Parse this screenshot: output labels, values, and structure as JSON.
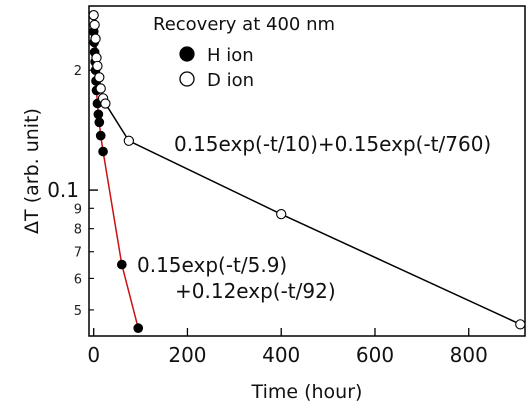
{
  "chart_data": {
    "type": "scatter",
    "title": "",
    "xlabel": "Time (hour)",
    "ylabel": "ΔT (arb. unit)",
    "x_scale": "linear",
    "y_scale": "log",
    "xlim": [
      -10,
      920
    ],
    "ylim": [
      0.043,
      0.29
    ],
    "x_ticks": [
      0,
      200,
      400,
      600,
      800
    ],
    "x_tick_labels": [
      "0",
      "200",
      "400",
      "600",
      "800"
    ],
    "y_major_ticks": [
      0.1
    ],
    "y_major_tick_labels": [
      "0.1"
    ],
    "y_minor_ticks": [
      0.05,
      0.06,
      0.07,
      0.08,
      0.09,
      0.2
    ],
    "y_minor_tick_labels": [
      "5",
      "6",
      "7",
      "8",
      "9",
      "2"
    ],
    "grid": false,
    "legend": {
      "title": "Recovery at 400 nm",
      "position": "top-center"
    },
    "series": [
      {
        "name": "H ion",
        "marker": "filled-circle",
        "color": "#000000",
        "fit_label_lines": [
          "0.15exp(-t/5.9)",
          "+0.12exp(-t/92)"
        ],
        "fit_color": "#cc1111",
        "points": [
          {
            "x": 0,
            "y": 0.25
          },
          {
            "x": 1,
            "y": 0.235
          },
          {
            "x": 2,
            "y": 0.222
          },
          {
            "x": 3,
            "y": 0.21
          },
          {
            "x": 4,
            "y": 0.2
          },
          {
            "x": 5,
            "y": 0.188
          },
          {
            "x": 6,
            "y": 0.178
          },
          {
            "x": 8,
            "y": 0.165
          },
          {
            "x": 10,
            "y": 0.155
          },
          {
            "x": 12,
            "y": 0.148
          },
          {
            "x": 15,
            "y": 0.137
          },
          {
            "x": 20,
            "y": 0.125
          },
          {
            "x": 60,
            "y": 0.065
          },
          {
            "x": 95,
            "y": 0.045
          }
        ]
      },
      {
        "name": "D ion",
        "marker": "open-circle",
        "color": "#000000",
        "fit_label_lines": [
          "0.15exp(-t/10)+0.15exp(-t/760)"
        ],
        "fit_color": "#000000",
        "points": [
          {
            "x": 0,
            "y": 0.275
          },
          {
            "x": 2,
            "y": 0.26
          },
          {
            "x": 4,
            "y": 0.24
          },
          {
            "x": 6,
            "y": 0.215
          },
          {
            "x": 8,
            "y": 0.205
          },
          {
            "x": 12,
            "y": 0.192
          },
          {
            "x": 15,
            "y": 0.18
          },
          {
            "x": 20,
            "y": 0.17
          },
          {
            "x": 25,
            "y": 0.165
          },
          {
            "x": 75,
            "y": 0.133
          },
          {
            "x": 400,
            "y": 0.087
          },
          {
            "x": 910,
            "y": 0.046
          }
        ]
      }
    ]
  }
}
